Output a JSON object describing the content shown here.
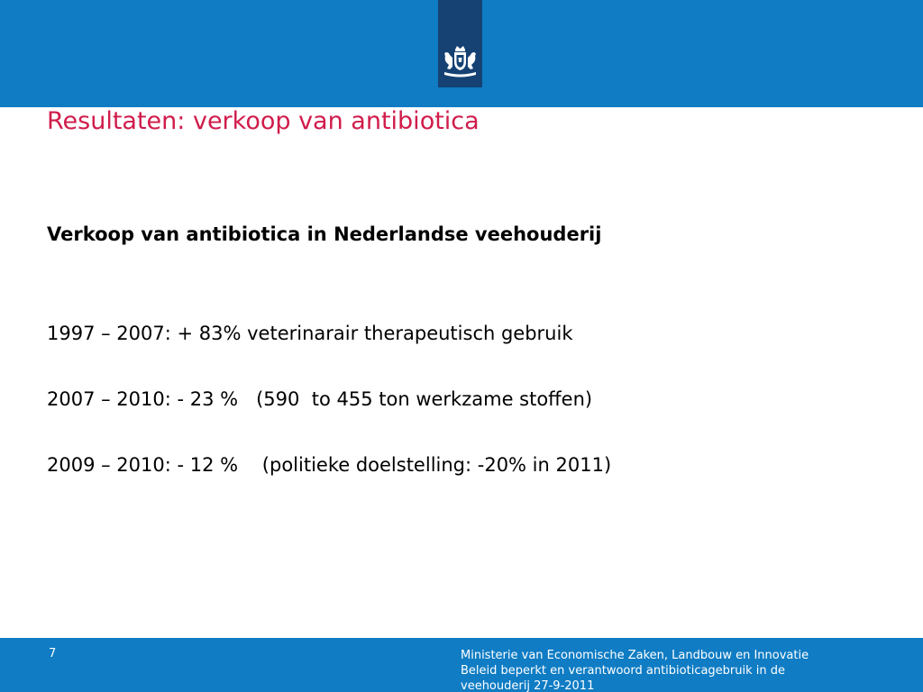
{
  "slide": {
    "title": "Resultaten: verkoop van antibiotica",
    "subtitle": "Verkoop van antibiotica in Nederlandse veehouderij",
    "lines": [
      "1997 – 2007: + 83% veterinarair therapeutisch gebruik",
      "2007 – 2010: - 23 %   (590  to 455 ton werkzame stoffen)",
      "2009 – 2010: - 12 %    (politieke doelstelling: -20% in 2011)"
    ]
  },
  "footer": {
    "page_number": "7",
    "ministry": "Ministerie van Economische Zaken, Landbouw en Innovatie",
    "document_line_1": "Beleid beperkt en verantwoord antibioticagebruik in de",
    "document_line_2": "veehouderij 27-9-2011"
  },
  "logo": {
    "icon": "coat-of-arms-icon"
  },
  "colors": {
    "header_blue": "#0f7cc4",
    "logo_bar": "#154273",
    "title_red": "#d01c4b"
  }
}
